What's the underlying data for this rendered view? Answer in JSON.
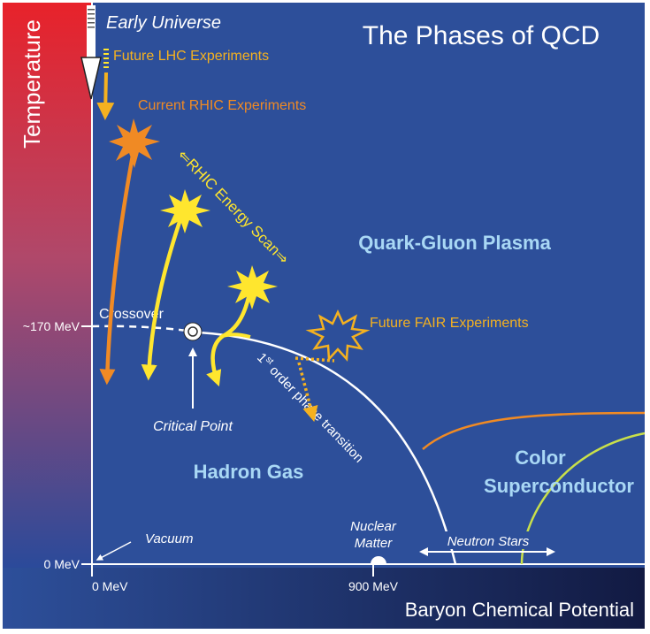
{
  "title": "The Phases of QCD",
  "axes": {
    "y_label": "Temperature",
    "x_label": "Baryon Chemical Potential",
    "y_tick_170": "~170 MeV",
    "y_tick_0": "0 MeV",
    "x_tick_0": "0 MeV",
    "x_tick_900": "900 MeV"
  },
  "phases": {
    "qgp": "Quark-Gluon Plasma",
    "hadron_gas": "Hadron Gas",
    "color_sc_line1": "Color",
    "color_sc_line2": "Superconductor"
  },
  "annotations": {
    "early_universe": "Early Universe",
    "future_lhc": "Future LHC Experiments",
    "current_rhic": "Current RHIC Experiments",
    "rhic_scan": "⇐RHIC Energy Scan⇒",
    "future_fair": "Future FAIR Experiments",
    "crossover": "Crossover",
    "critical_point": "Critical Point",
    "first_order_sup": "st",
    "first_order_pre": "1",
    "first_order_post": " order phase transition",
    "vacuum": "Vacuum",
    "nuclear_line1": "Nuclear",
    "nuclear_line2": "Matter",
    "neutron_stars": "Neutron Stars"
  },
  "colors": {
    "background": "#2d4f9a",
    "orange": "#f08a24",
    "yellow": "#ffe62e",
    "light_blue_text": "#a9d8f5",
    "lime": "#c9e04a",
    "white": "#ffffff"
  }
}
